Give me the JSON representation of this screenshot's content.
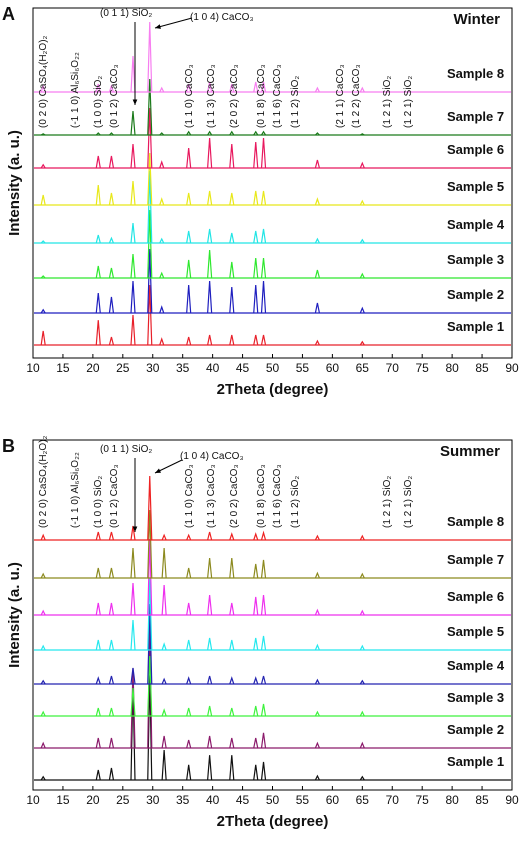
{
  "chart_data": [
    {
      "type": "line",
      "panel_label": "A",
      "title": "Winter",
      "xlabel": "2Theta (degree)",
      "ylabel": "Intensity (a. u.)",
      "xlim": [
        10,
        90
      ],
      "xticks": [
        10,
        15,
        20,
        25,
        30,
        35,
        40,
        45,
        50,
        55,
        60,
        65,
        70,
        75,
        80,
        85,
        90
      ],
      "x": [
        11.7,
        20.9,
        23.1,
        26.7,
        29.5,
        31.5,
        36.0,
        39.5,
        43.2,
        47.2,
        48.5,
        57.5,
        65.0
      ],
      "series": [
        {
          "name": "Sample 1",
          "color": "#e8202a",
          "values": [
            35,
            62,
            20,
            75,
            150,
            15,
            20,
            25,
            25,
            25,
            25,
            10,
            8
          ]
        },
        {
          "name": "Sample 2",
          "color": "#1f1fbf",
          "values": [
            8,
            50,
            40,
            80,
            160,
            15,
            70,
            80,
            65,
            70,
            80,
            25,
            12
          ]
        },
        {
          "name": "Sample 3",
          "color": "#2ee82e",
          "values": [
            5,
            30,
            25,
            60,
            170,
            12,
            45,
            70,
            40,
            50,
            50,
            20,
            10
          ]
        },
        {
          "name": "Sample 4",
          "color": "#22e5e5",
          "values": [
            5,
            20,
            12,
            50,
            180,
            10,
            30,
            35,
            25,
            30,
            35,
            10,
            8
          ]
        },
        {
          "name": "Sample 5",
          "color": "#e8e81a",
          "values": [
            25,
            50,
            30,
            60,
            130,
            15,
            30,
            35,
            30,
            35,
            35,
            15,
            10
          ]
        },
        {
          "name": "Sample 6",
          "color": "#e8185e",
          "values": [
            8,
            30,
            30,
            60,
            150,
            15,
            50,
            75,
            60,
            65,
            75,
            20,
            12
          ]
        },
        {
          "name": "Sample 7",
          "color": "#1b7a1b",
          "values": [
            3,
            5,
            5,
            60,
            140,
            5,
            8,
            8,
            8,
            8,
            8,
            5,
            3
          ]
        },
        {
          "name": "Sample 8",
          "color": "#f77ef0",
          "values": [
            15,
            20,
            15,
            90,
            175,
            10,
            20,
            25,
            20,
            25,
            25,
            10,
            10
          ]
        }
      ],
      "annotations": [
        "(0 2 0) CaSO₄(H₂O)₂",
        "(-1 1 0) Al₆Si₆O₂₂",
        "(1 0 0) SiO₂",
        "(0 1 2) CaCO₃",
        "(1 1 0) CaCO₃",
        "(1 1 3) CaCO₃",
        "(2 0 2) CaCO₃",
        "(0 1 8) CaCO₃",
        "(1 1 6) CaCO₃",
        "(1 1 2) SiO₂",
        "(2 1 1) CaCO₃",
        "(1 2 2) CaCO₃",
        "(1 2 1) SiO₂",
        "(1 2 1) SiO₂"
      ],
      "top_annotations": [
        "(0 1 1) SiO₂",
        "(1 0 4) CaCO₃"
      ]
    },
    {
      "type": "line",
      "panel_label": "B",
      "title": "Summer",
      "xlabel": "2Theta (degree)",
      "ylabel": "Intensity (a. u.)",
      "xlim": [
        10,
        90
      ],
      "xticks": [
        10,
        15,
        20,
        25,
        30,
        35,
        40,
        45,
        50,
        55,
        60,
        65,
        70,
        75,
        80,
        85,
        90
      ],
      "x": [
        11.7,
        20.9,
        23.1,
        26.7,
        29.5,
        31.9,
        36.0,
        39.5,
        43.2,
        47.2,
        48.5,
        57.5,
        65.0
      ],
      "series": [
        {
          "name": "Sample 1",
          "color": "#111111",
          "values": [
            8,
            25,
            30,
            238,
            262,
            75,
            38,
            62,
            62,
            38,
            45,
            10,
            8
          ]
        },
        {
          "name": "Sample 2",
          "color": "#8b1a6b",
          "values": [
            12,
            25,
            25,
            200,
            300,
            30,
            20,
            30,
            25,
            25,
            38,
            12,
            12
          ]
        },
        {
          "name": "Sample 3",
          "color": "#3df23d",
          "values": [
            10,
            20,
            20,
            70,
            150,
            15,
            20,
            25,
            20,
            25,
            30,
            10,
            10
          ]
        },
        {
          "name": "Sample 4",
          "color": "#2323b0",
          "values": [
            8,
            15,
            20,
            40,
            200,
            12,
            15,
            20,
            15,
            15,
            20,
            10,
            8
          ]
        },
        {
          "name": "Sample 5",
          "color": "#25e8ee",
          "values": [
            10,
            25,
            25,
            75,
            180,
            15,
            25,
            30,
            25,
            30,
            35,
            12,
            10
          ]
        },
        {
          "name": "Sample 6",
          "color": "#ee30ee",
          "values": [
            10,
            30,
            30,
            80,
            190,
            75,
            30,
            50,
            30,
            45,
            50,
            12,
            10
          ]
        },
        {
          "name": "Sample 7",
          "color": "#8c8a1f",
          "values": [
            10,
            25,
            25,
            75,
            170,
            75,
            25,
            50,
            50,
            35,
            45,
            12,
            10
          ]
        },
        {
          "name": "Sample 8",
          "color": "#ee2222",
          "values": [
            12,
            20,
            20,
            35,
            160,
            12,
            12,
            20,
            15,
            15,
            18,
            10,
            10
          ]
        }
      ],
      "annotations": [
        "(0 2 0) CaSO₄(H₂O)₂",
        "(-1 1 0) Al₆Si₆O₂₂",
        "(1 0 0) SiO₂",
        "(0 1 2) CaCO₃",
        "(1 1 0) CaCO₃",
        "(1 1 3) CaCO₃",
        "(2 0 2) CaCO₃",
        "(0 1 8) CaCO₃",
        "(1 1 6) CaCO₃",
        "(1 1 2) SiO₂",
        "(1 2 1) SiO₂",
        "(1 2 1) SiO₂"
      ],
      "top_annotations": [
        "(0 1 1) SiO₂",
        "(1 0 4) CaCO₃"
      ]
    }
  ]
}
